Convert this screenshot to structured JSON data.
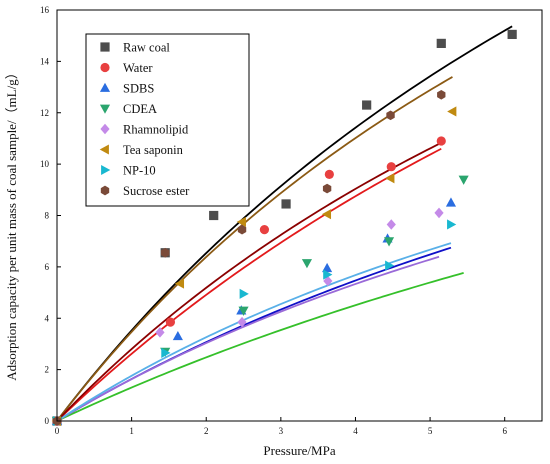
{
  "chart_data": {
    "type": "scatter",
    "title": "",
    "xlabel": "Pressure/MPa",
    "ylabel": "Adsorption capacity per unit mass of coal sample/（mL/g）",
    "xlim": [
      0,
      6.5
    ],
    "ylim": [
      0,
      16
    ],
    "xticks": [
      "0",
      "1",
      "2",
      "3",
      "4",
      "5",
      "6"
    ],
    "yticks": [
      "0",
      "2",
      "4",
      "6",
      "8",
      "10",
      "12",
      "14",
      "16"
    ],
    "grid": false,
    "legend_position": "top-left",
    "series": [
      {
        "name": "Raw coal",
        "marker": "square",
        "color": "#4d4d4d",
        "fit_color": "#000000",
        "x": [
          0,
          1.45,
          2.1,
          3.07,
          4.15,
          5.15,
          6.1
        ],
        "y": [
          0,
          6.55,
          8.0,
          8.45,
          12.3,
          14.7,
          15.05
        ],
        "fit": {
          "a": 45.0,
          "b": 0.085
        }
      },
      {
        "name": "Water",
        "marker": "circle",
        "color": "#e84040",
        "fit_color": "#e31a1c",
        "x": [
          0,
          1.52,
          2.78,
          3.65,
          4.48,
          5.15
        ],
        "y": [
          0,
          3.85,
          7.45,
          9.6,
          9.9,
          10.9
        ],
        "fit": {
          "a": 40.0,
          "b": 0.07
        }
      },
      {
        "name": "SDBS",
        "marker": "triangle-up",
        "color": "#2a6de0",
        "fit_color": "#1010c8",
        "x": [
          0,
          1.62,
          2.47,
          3.62,
          4.43,
          5.28
        ],
        "y": [
          0,
          3.3,
          4.3,
          5.95,
          7.1,
          8.5
        ],
        "fit": {
          "a": 25.0,
          "b": 0.07
        }
      },
      {
        "name": "CDEA",
        "marker": "triangle-down",
        "color": "#2ba56e",
        "fit_color": "#35c02a",
        "x": [
          0,
          1.45,
          2.5,
          3.35,
          4.45,
          5.45
        ],
        "y": [
          0,
          2.7,
          4.3,
          6.15,
          7.0,
          9.4
        ],
        "fit": {
          "a": 25.0,
          "b": 0.055
        }
      },
      {
        "name": "Rhamnolipid",
        "marker": "diamond",
        "color": "#c48ae8",
        "fit_color": "#9a6ad8",
        "x": [
          0,
          1.38,
          2.48,
          3.63,
          4.48,
          5.12
        ],
        "y": [
          0,
          3.45,
          3.85,
          5.45,
          7.65,
          8.1
        ],
        "fit": {
          "a": 22.0,
          "b": 0.08
        }
      },
      {
        "name": "Tea saponin",
        "marker": "triangle-left",
        "color": "#c08a10",
        "fit_color": "#8b5a14",
        "x": [
          0,
          1.65,
          2.48,
          3.62,
          4.47,
          5.3
        ],
        "y": [
          0,
          5.35,
          7.75,
          8.05,
          9.45,
          12.05
        ],
        "fit": {
          "a": 40.0,
          "b": 0.095
        }
      },
      {
        "name": "NP-10",
        "marker": "triangle-right",
        "color": "#19b8d0",
        "fit_color": "#59b0e8",
        "x": [
          0,
          1.45,
          2.5,
          3.62,
          4.45,
          5.28
        ],
        "y": [
          0,
          2.65,
          4.95,
          5.7,
          6.05,
          7.65
        ],
        "fit": {
          "a": 22.0,
          "b": 0.087
        }
      },
      {
        "name": "Sucrose ester",
        "marker": "hexagon",
        "color": "#7a4a38",
        "fit_color": "#8b0000",
        "x": [
          0,
          1.45,
          2.48,
          3.62,
          4.47,
          5.15
        ],
        "y": [
          0,
          6.55,
          7.45,
          9.05,
          11.9,
          12.7
        ],
        "fit": {
          "a": 35.0,
          "b": 0.087
        }
      }
    ]
  }
}
